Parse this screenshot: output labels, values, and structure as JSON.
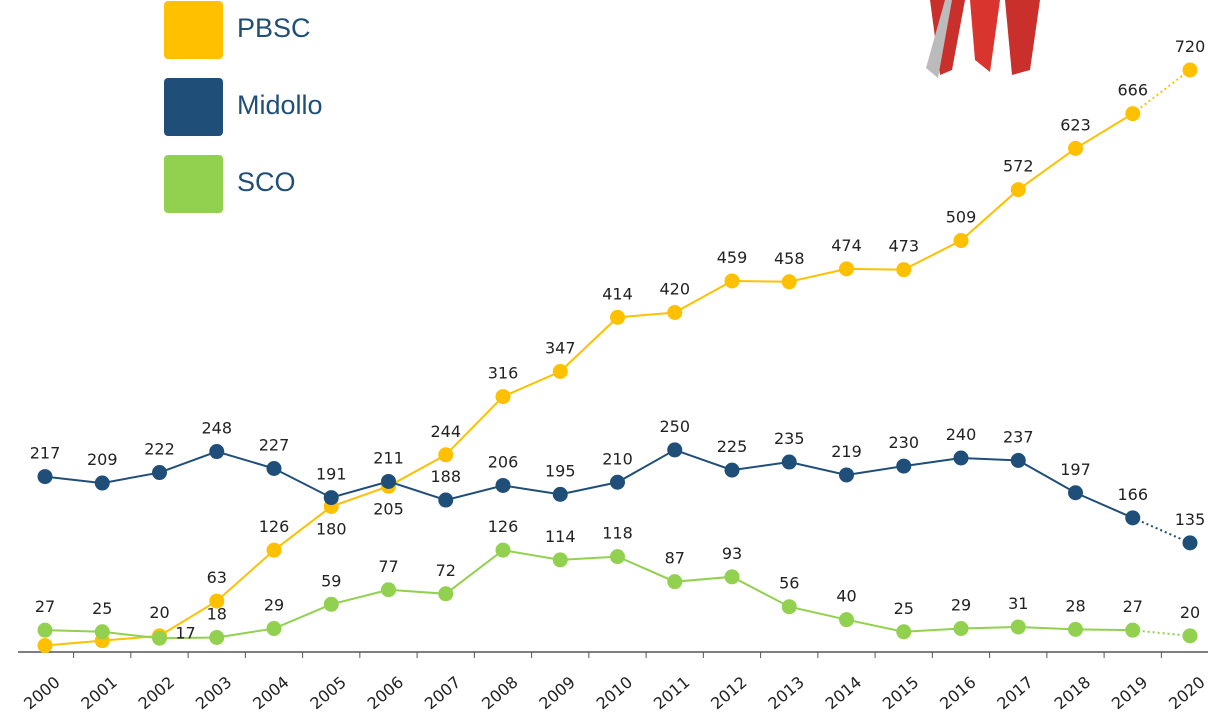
{
  "chart_data": {
    "type": "line",
    "categories": [
      "2000",
      "2001",
      "2002",
      "2003",
      "2004",
      "2005",
      "2006",
      "2007",
      "2008",
      "2009",
      "2010",
      "2011",
      "2012",
      "2013",
      "2014",
      "2015",
      "2016",
      "2017",
      "2018",
      "2019",
      "2020"
    ],
    "ylim": [
      0,
      720
    ],
    "dashed_last_segment": true,
    "series": [
      {
        "name": "PBSC",
        "color": "#ffc000",
        "values": [
          8,
          14,
          20,
          63,
          126,
          180,
          205,
          244,
          316,
          347,
          414,
          420,
          459,
          458,
          474,
          473,
          509,
          572,
          623,
          666,
          720
        ],
        "value_labels": [
          null,
          null,
          "20",
          "63",
          "126",
          "180",
          "205",
          "244",
          "316",
          "347",
          "414",
          "420",
          "459",
          "458",
          "474",
          "473",
          "509",
          "572",
          "623",
          "666",
          "720"
        ]
      },
      {
        "name": "Midollo",
        "color": "#1f4e79",
        "values": [
          217,
          209,
          222,
          248,
          227,
          191,
          211,
          188,
          206,
          195,
          210,
          250,
          225,
          235,
          219,
          230,
          240,
          237,
          197,
          166,
          135
        ]
      },
      {
        "name": "SCO",
        "color": "#92d050",
        "values": [
          27,
          25,
          17,
          18,
          29,
          59,
          77,
          72,
          126,
          114,
          118,
          87,
          93,
          56,
          40,
          25,
          29,
          31,
          28,
          27,
          20
        ]
      }
    ]
  }
}
